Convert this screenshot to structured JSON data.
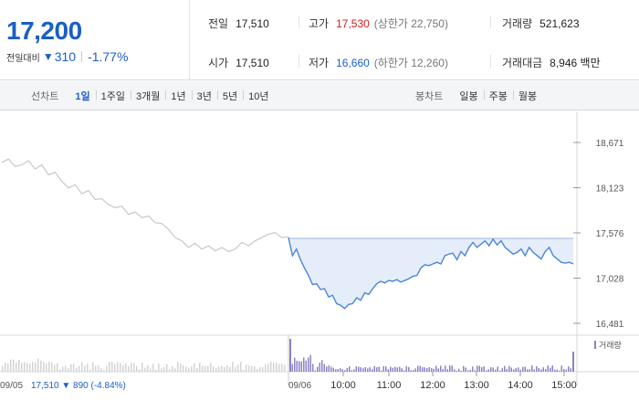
{
  "quote": {
    "price": "17,200",
    "change_label": "전일대비",
    "change_arrow": "▼",
    "change_value": "310",
    "change_rate": "-1.77%"
  },
  "stats": {
    "prev_close": {
      "label": "전일",
      "value": "17,510"
    },
    "open": {
      "label": "시가",
      "value": "17,510"
    },
    "high": {
      "label": "고가",
      "value": "17,530",
      "sub": "(상한가 22,750)"
    },
    "low": {
      "label": "저가",
      "value": "16,660",
      "sub": "(하한가 12,260)"
    },
    "volume": {
      "label": "거래량",
      "value": "521,623"
    },
    "amount": {
      "label": "거래대금",
      "value": "8,946 백만"
    }
  },
  "line_tabs": {
    "title": "선차트",
    "items": [
      "1일",
      "1주일",
      "3개월",
      "1년",
      "3년",
      "5년",
      "10년"
    ],
    "active": 0
  },
  "candle_tabs": {
    "title": "봉차트",
    "items": [
      "일봉",
      "주봉",
      "월봉"
    ]
  },
  "colors": {
    "down": "#1a5fc4",
    "up": "#d11b1b",
    "prev_day_line": "#c8c8c8",
    "today_line": "#4a86d8",
    "fill": "#e4edf9",
    "volume_today": "#8c82c6",
    "volume_prev": "#d3d3d3"
  },
  "chart_data": {
    "type": "line",
    "y_ticks": [
      "18,671",
      "18,123",
      "17,576",
      "17,028",
      "16,481"
    ],
    "y_tick_values": [
      18671,
      18123,
      17576,
      17028,
      16481
    ],
    "ylim": [
      16481,
      18671
    ],
    "baseline_price": 17510,
    "prev_day_label": "09/05",
    "prev_day_info": {
      "close": "17,510",
      "arrow": "▼",
      "change": "890",
      "rate": "(-4.84%)"
    },
    "today_label": "09/06",
    "time_ticks": [
      "10:00",
      "11:00",
      "12:00",
      "13:00",
      "14:00",
      "15:00"
    ],
    "volume_label": "거래량",
    "prev_day_prices": [
      18430,
      18470,
      18380,
      18400,
      18450,
      18350,
      18400,
      18280,
      18310,
      18200,
      18120,
      18160,
      18050,
      18090,
      17980,
      17990,
      17920,
      17880,
      17900,
      17800,
      17830,
      17760,
      17780,
      17700,
      17690,
      17620,
      17520,
      17480,
      17400,
      17450,
      17380,
      17420,
      17360,
      17400,
      17350,
      17380,
      17460,
      17420,
      17480,
      17520,
      17560,
      17580,
      17520,
      17530
    ],
    "today_prices": [
      17520,
      17300,
      17380,
      17250,
      17150,
      17060,
      16950,
      16960,
      16890,
      16900,
      16800,
      16820,
      16720,
      16700,
      16660,
      16710,
      16720,
      16790,
      16760,
      16850,
      16830,
      16900,
      16960,
      16990,
      16970,
      17000,
      16990,
      17010,
      16980,
      17000,
      17020,
      17050,
      17060,
      17150,
      17190,
      17180,
      17200,
      17220,
      17200,
      17300,
      17320,
      17330,
      17250,
      17350,
      17300,
      17400,
      17460,
      17400,
      17440,
      17480,
      17420,
      17500,
      17430,
      17480,
      17400,
      17360,
      17320,
      17340,
      17380,
      17300,
      17400,
      17340,
      17300,
      17260,
      17350,
      17400,
      17300,
      17260,
      17220,
      17210,
      17220,
      17200
    ]
  }
}
